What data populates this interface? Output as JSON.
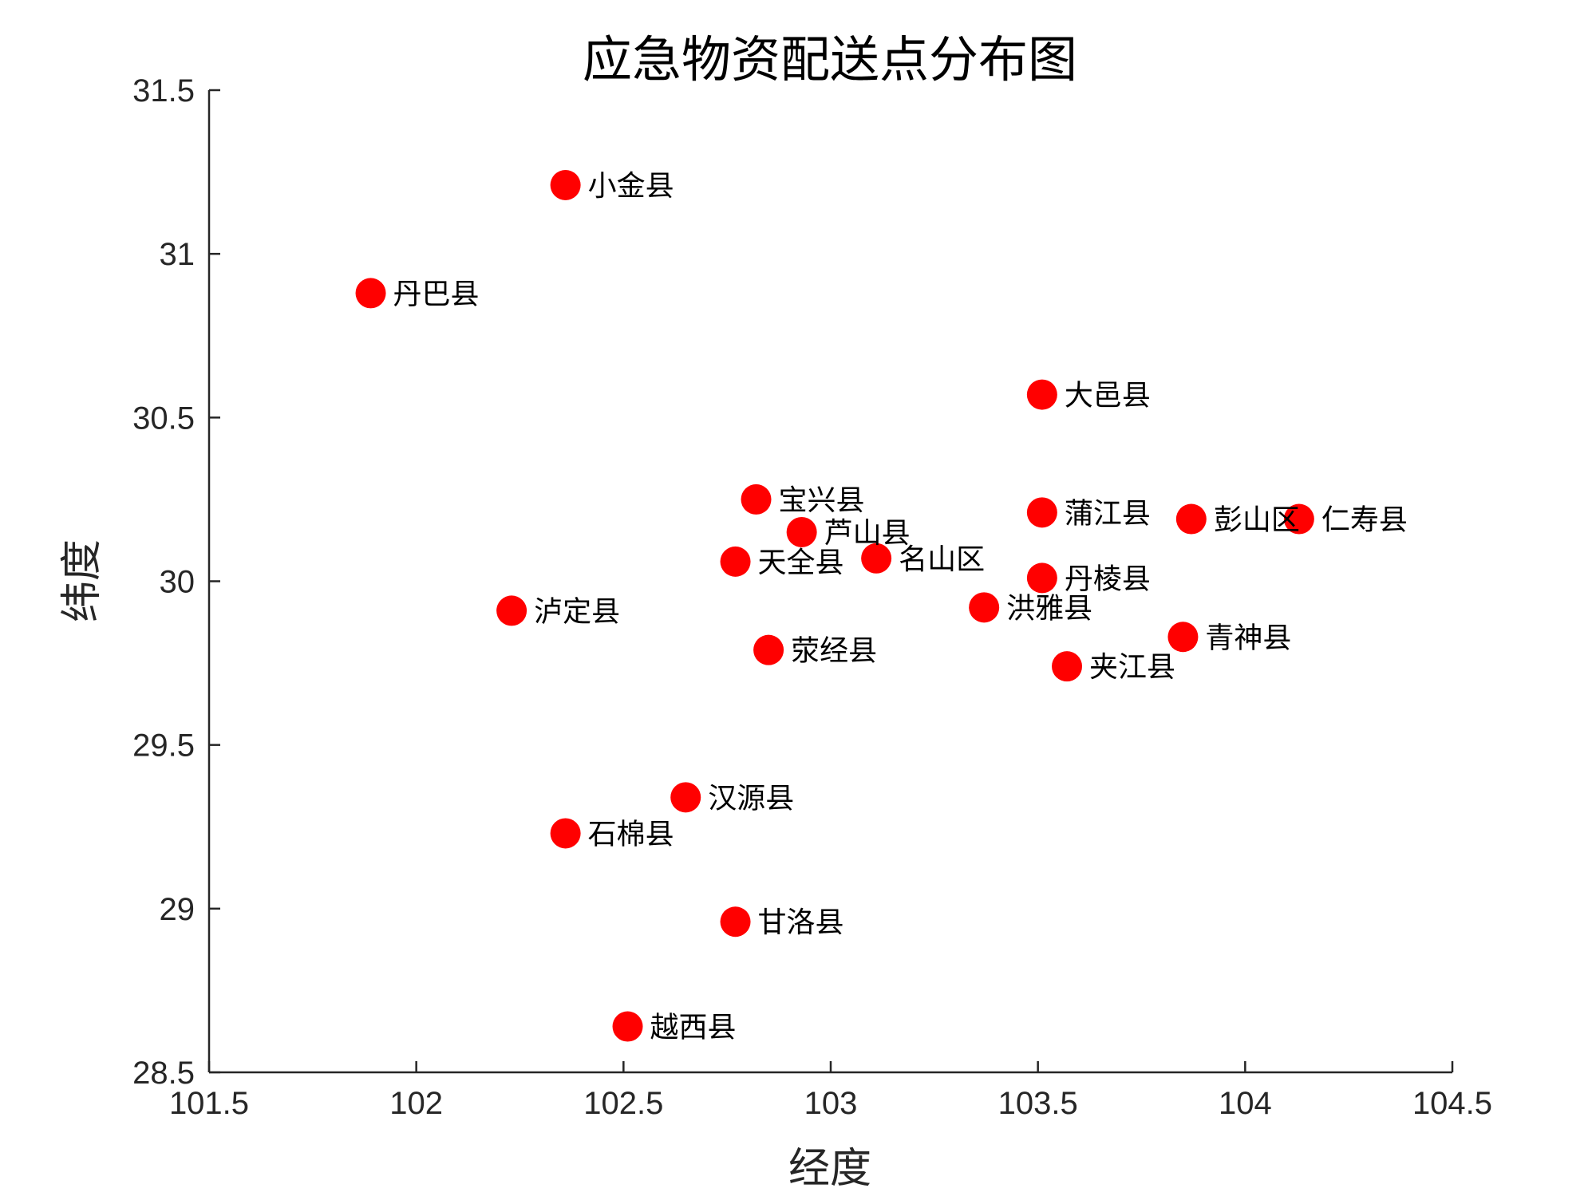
{
  "chart_data": {
    "type": "scatter",
    "title": "应急物资配送点分布图",
    "xlabel": "经度",
    "ylabel": "纬度",
    "xlim": [
      101.5,
      104.5
    ],
    "ylim": [
      28.5,
      31.5
    ],
    "xticks": [
      101.5,
      102,
      102.5,
      103,
      103.5,
      104,
      104.5
    ],
    "yticks": [
      28.5,
      29,
      29.5,
      30,
      30.5,
      31,
      31.5
    ],
    "xtick_labels": [
      "101.5",
      "102",
      "102.5",
      "103",
      "103.5",
      "104",
      "104.5"
    ],
    "ytick_labels": [
      "28.5",
      "29",
      "29.5",
      "30",
      "30.5",
      "31",
      "31.5"
    ],
    "grid": false,
    "marker_color": "#ff0000",
    "points": [
      {
        "label": "小金县",
        "x": 102.36,
        "y": 31.21
      },
      {
        "label": "丹巴县",
        "x": 101.89,
        "y": 30.88
      },
      {
        "label": "大邑县",
        "x": 103.51,
        "y": 30.57
      },
      {
        "label": "宝兴县",
        "x": 102.82,
        "y": 30.25
      },
      {
        "label": "芦山县",
        "x": 102.93,
        "y": 30.15
      },
      {
        "label": "名山区",
        "x": 103.11,
        "y": 30.07
      },
      {
        "label": "天全县",
        "x": 102.77,
        "y": 30.06
      },
      {
        "label": "蒲江县",
        "x": 103.51,
        "y": 30.21
      },
      {
        "label": "彭山区",
        "x": 103.87,
        "y": 30.19
      },
      {
        "label": "仁寿县",
        "x": 104.13,
        "y": 30.19
      },
      {
        "label": "丹棱县",
        "x": 103.51,
        "y": 30.01
      },
      {
        "label": "洪雅县",
        "x": 103.37,
        "y": 29.92
      },
      {
        "label": "泸定县",
        "x": 102.23,
        "y": 29.91
      },
      {
        "label": "荥经县",
        "x": 102.85,
        "y": 29.79
      },
      {
        "label": "青神县",
        "x": 103.85,
        "y": 29.83
      },
      {
        "label": "夹江县",
        "x": 103.57,
        "y": 29.74
      },
      {
        "label": "汉源县",
        "x": 102.65,
        "y": 29.34
      },
      {
        "label": "石棉县",
        "x": 102.36,
        "y": 29.23
      },
      {
        "label": "甘洛县",
        "x": 102.77,
        "y": 28.96
      },
      {
        "label": "越西县",
        "x": 102.51,
        "y": 28.64
      }
    ]
  }
}
